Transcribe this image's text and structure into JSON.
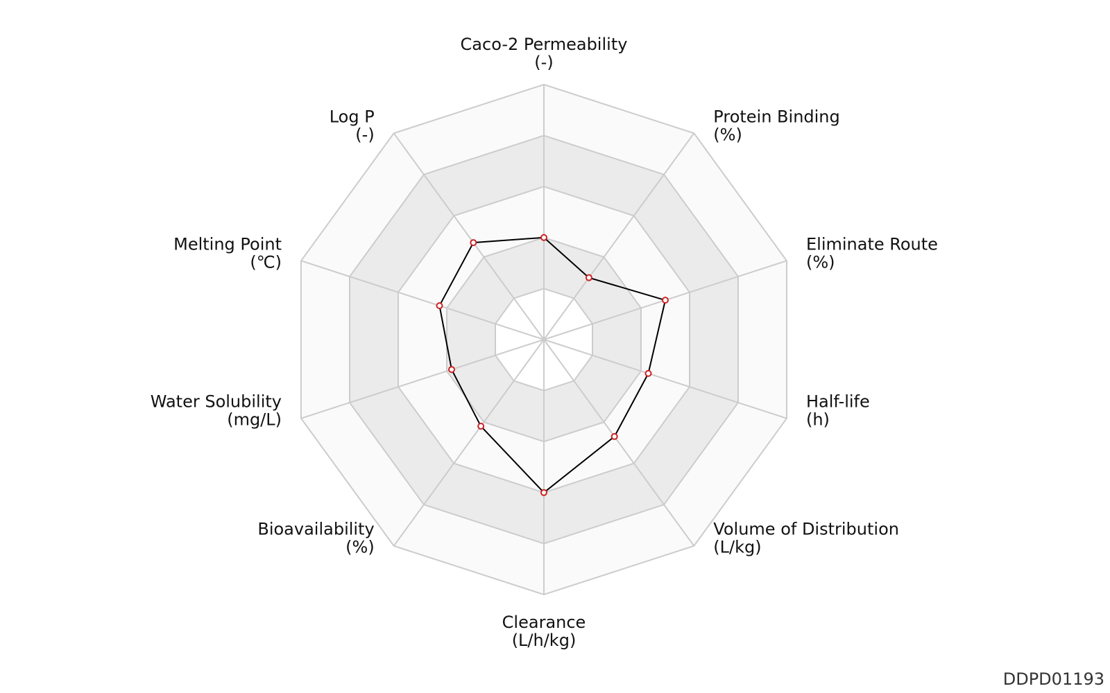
{
  "chart_data": {
    "type": "radar",
    "axes": [
      {
        "name": "Caco-2 Permeability",
        "unit": "(-)",
        "value": 0.4
      },
      {
        "name": "Protein Binding",
        "unit": "(%)",
        "value": 0.3
      },
      {
        "name": "Eliminate Route",
        "unit": "(%)",
        "value": 0.5
      },
      {
        "name": "Half-life",
        "unit": "(h)",
        "value": 0.43
      },
      {
        "name": "Volume of Distribution",
        "unit": "(L/kg)",
        "value": 0.47
      },
      {
        "name": "Clearance",
        "unit": "(L/h/kg)",
        "value": 0.6
      },
      {
        "name": "Bioavailability",
        "unit": "(%)",
        "value": 0.42
      },
      {
        "name": "Water Solubility",
        "unit": "(mg/L)",
        "value": 0.38
      },
      {
        "name": "Melting Point",
        "unit": "(℃)",
        "value": 0.43
      },
      {
        "name": "Log P",
        "unit": "(-)",
        "value": 0.47
      }
    ],
    "range": [
      0,
      1
    ],
    "rings": 5,
    "band_colors": [
      "#ffffff",
      "#ebebeb",
      "#fafafa",
      "#ebebeb",
      "#fafafa"
    ],
    "grid_color": "#cccccc",
    "line_color": "#000000",
    "marker_color": "#cc2222"
  },
  "chart_id": "DDPD01193"
}
